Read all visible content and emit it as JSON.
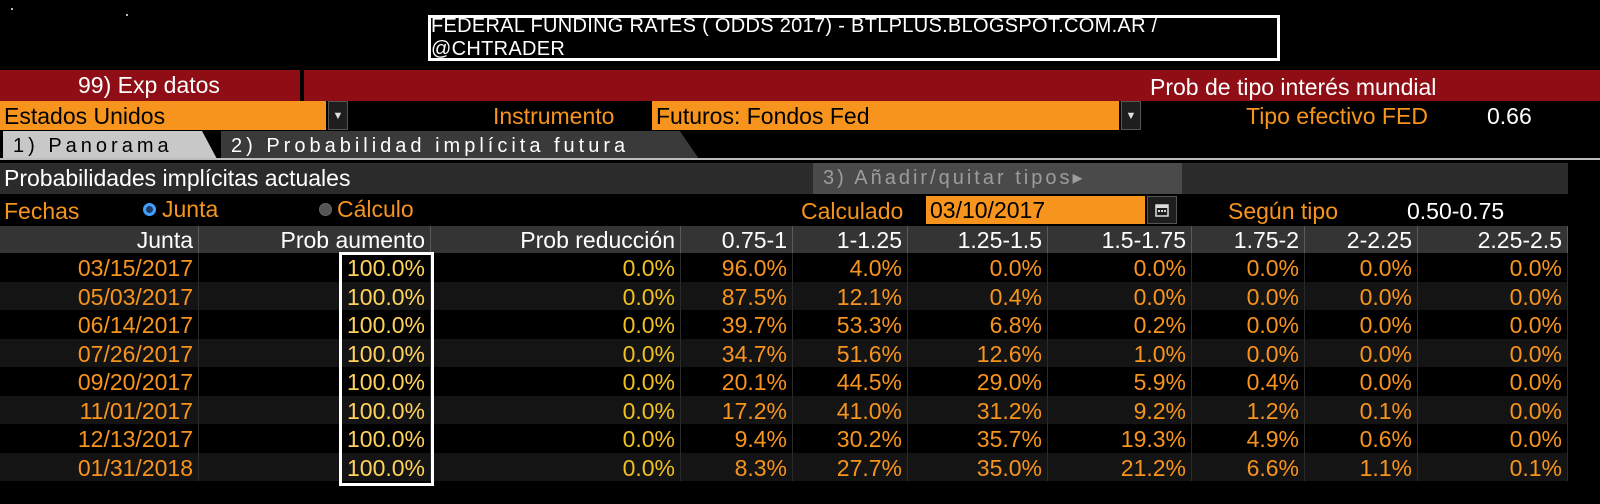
{
  "banner": {
    "title": "FEDERAL FUNDING RATES ( ODDS 2017) - BTLPLUS.BLOGSPOT.COM.AR / @CHTRADER"
  },
  "menu": {
    "exp_label": "99) Exp datos",
    "screen_title": "Prob de tipo interés mundial"
  },
  "controls": {
    "country": "Estados Unidos",
    "instrument_label": "Instrumento",
    "instrument": "Futuros: Fondos Fed",
    "effective_label": "Tipo efectivo FED",
    "effective_value": "0.66"
  },
  "tabs": [
    {
      "label": "1) Panorama",
      "active": true
    },
    {
      "label": "2) Probabilidad implícita futura",
      "active": false
    }
  ],
  "panel": {
    "title": "Probabilidades implícitas actuales",
    "add_button": "3) Añadir/quitar tipos▸",
    "dates_label": "Fechas",
    "radio_junta": "Junta",
    "radio_calculo": "Cálculo",
    "calc_label": "Calculado",
    "calc_date": "03/10/2017",
    "rate_label": "Según tipo",
    "rate_value": "0.50-0.75"
  },
  "table": {
    "columns": [
      "Junta",
      "Prob aumento",
      "Prob reducción",
      "0.75-1",
      "1-1.25",
      "1.25-1.5",
      "1.5-1.75",
      "1.75-2",
      "2-2.25",
      "2.25-2.5"
    ],
    "rows": [
      [
        "03/15/2017",
        "100.0%",
        "0.0%",
        "96.0%",
        "4.0%",
        "0.0%",
        "0.0%",
        "0.0%",
        "0.0%",
        "0.0%"
      ],
      [
        "05/03/2017",
        "100.0%",
        "0.0%",
        "87.5%",
        "12.1%",
        "0.4%",
        "0.0%",
        "0.0%",
        "0.0%",
        "0.0%"
      ],
      [
        "06/14/2017",
        "100.0%",
        "0.0%",
        "39.7%",
        "53.3%",
        "6.8%",
        "0.2%",
        "0.0%",
        "0.0%",
        "0.0%"
      ],
      [
        "07/26/2017",
        "100.0%",
        "0.0%",
        "34.7%",
        "51.6%",
        "12.6%",
        "1.0%",
        "0.0%",
        "0.0%",
        "0.0%"
      ],
      [
        "09/20/2017",
        "100.0%",
        "0.0%",
        "20.1%",
        "44.5%",
        "29.0%",
        "5.9%",
        "0.4%",
        "0.0%",
        "0.0%"
      ],
      [
        "11/01/2017",
        "100.0%",
        "0.0%",
        "17.2%",
        "41.0%",
        "31.2%",
        "9.2%",
        "1.2%",
        "0.1%",
        "0.0%"
      ],
      [
        "12/13/2017",
        "100.0%",
        "0.0%",
        "9.4%",
        "30.2%",
        "35.7%",
        "19.3%",
        "4.9%",
        "0.6%",
        "0.0%"
      ],
      [
        "01/31/2018",
        "100.0%",
        "0.0%",
        "8.3%",
        "27.7%",
        "35.0%",
        "21.2%",
        "6.6%",
        "1.1%",
        "0.1%"
      ]
    ]
  },
  "colors": {
    "accent_orange": "#f7941d",
    "menu_red": "#8f0d14",
    "highlight_box": "#ffffff"
  }
}
